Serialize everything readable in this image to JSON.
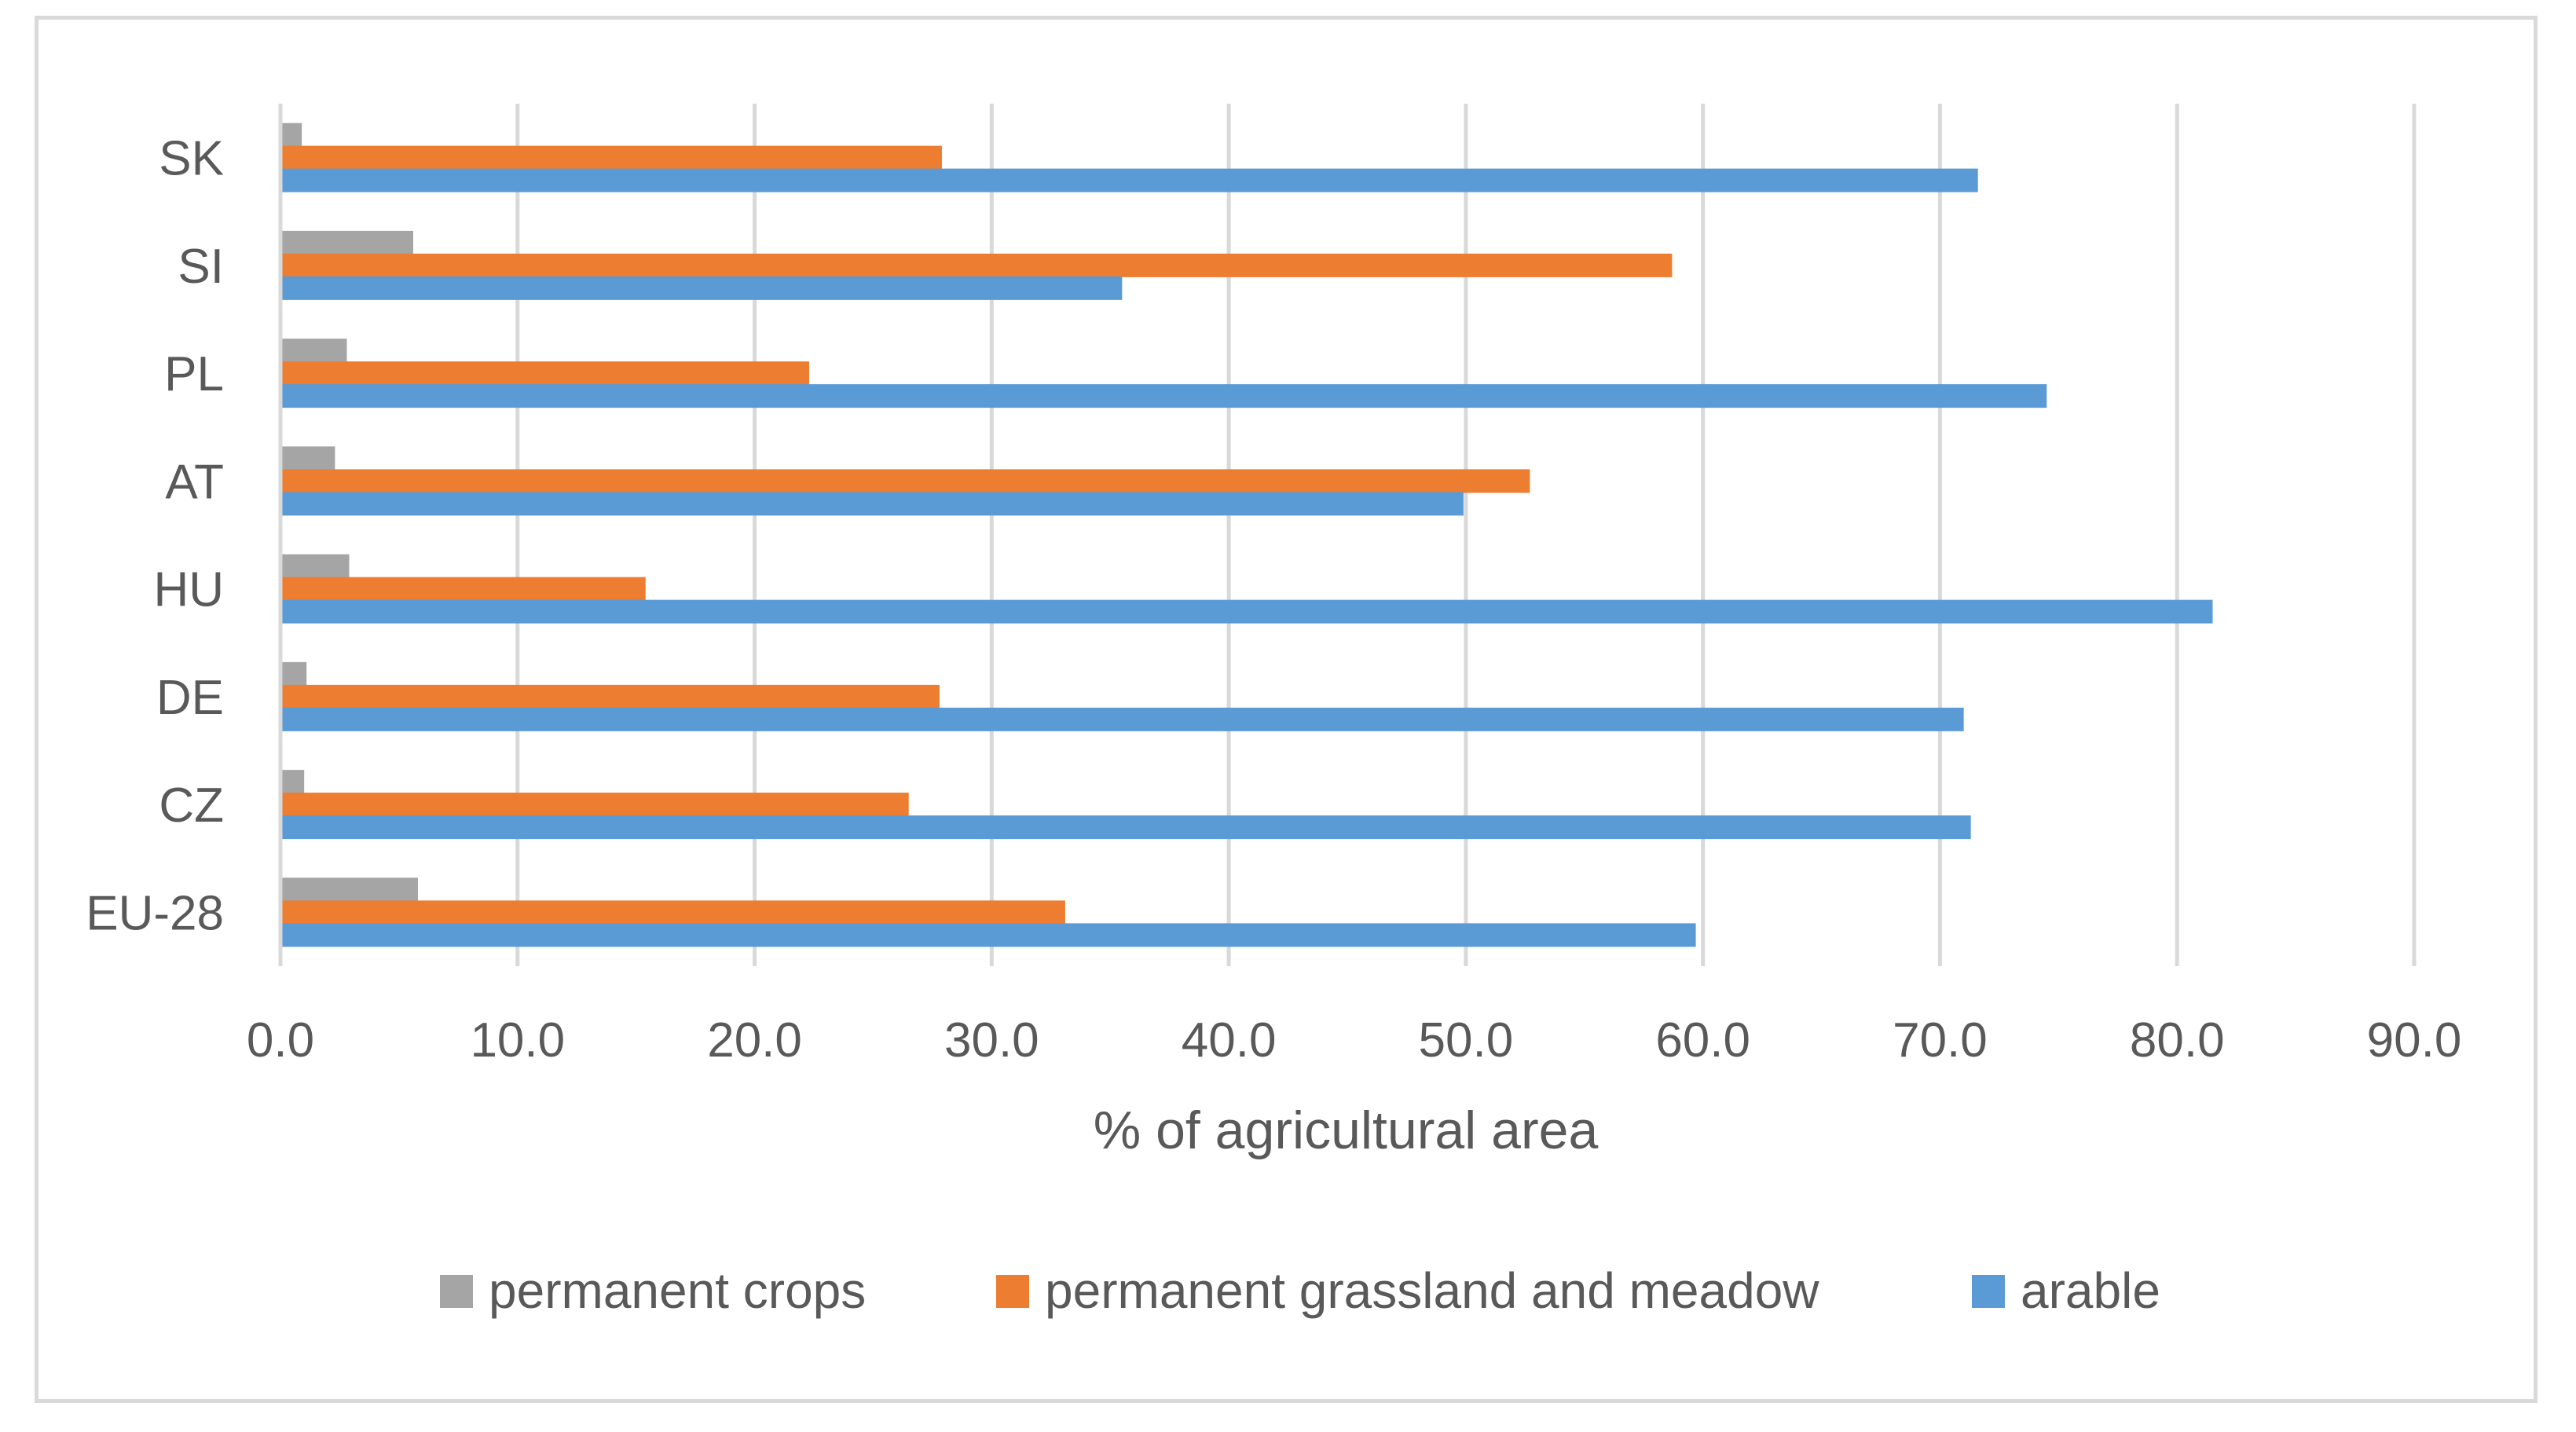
{
  "chart_data": {
    "type": "bar",
    "orientation": "horizontal",
    "title": "",
    "xlabel": "% of agricultural area",
    "ylabel": "",
    "xlim": [
      0,
      90
    ],
    "x_ticks": [
      "0.0",
      "10.0",
      "20.0",
      "30.0",
      "40.0",
      "50.0",
      "60.0",
      "70.0",
      "80.0",
      "90.0"
    ],
    "grid": "vertical",
    "legend_position": "bottom",
    "categories": [
      "EU-28",
      "CZ",
      "DE",
      "HU",
      "AT",
      "PL",
      "SI",
      "SK"
    ],
    "series": [
      {
        "name": "permanent crops",
        "color": "#a5a5a5",
        "values": [
          5.8,
          1.0,
          1.1,
          2.9,
          2.3,
          2.8,
          5.6,
          0.9
        ]
      },
      {
        "name": "permanent grassland and meadow",
        "color": "#ed7d31",
        "values": [
          33.1,
          26.5,
          27.8,
          15.4,
          52.7,
          22.3,
          58.7,
          27.9
        ]
      },
      {
        "name": "arable",
        "color": "#5b9bd5",
        "values": [
          59.7,
          71.3,
          71.0,
          81.5,
          49.9,
          74.5,
          35.5,
          71.6
        ]
      }
    ],
    "legend_order": [
      "permanent crops",
      "permanent grassland and meadow",
      "arable"
    ]
  }
}
